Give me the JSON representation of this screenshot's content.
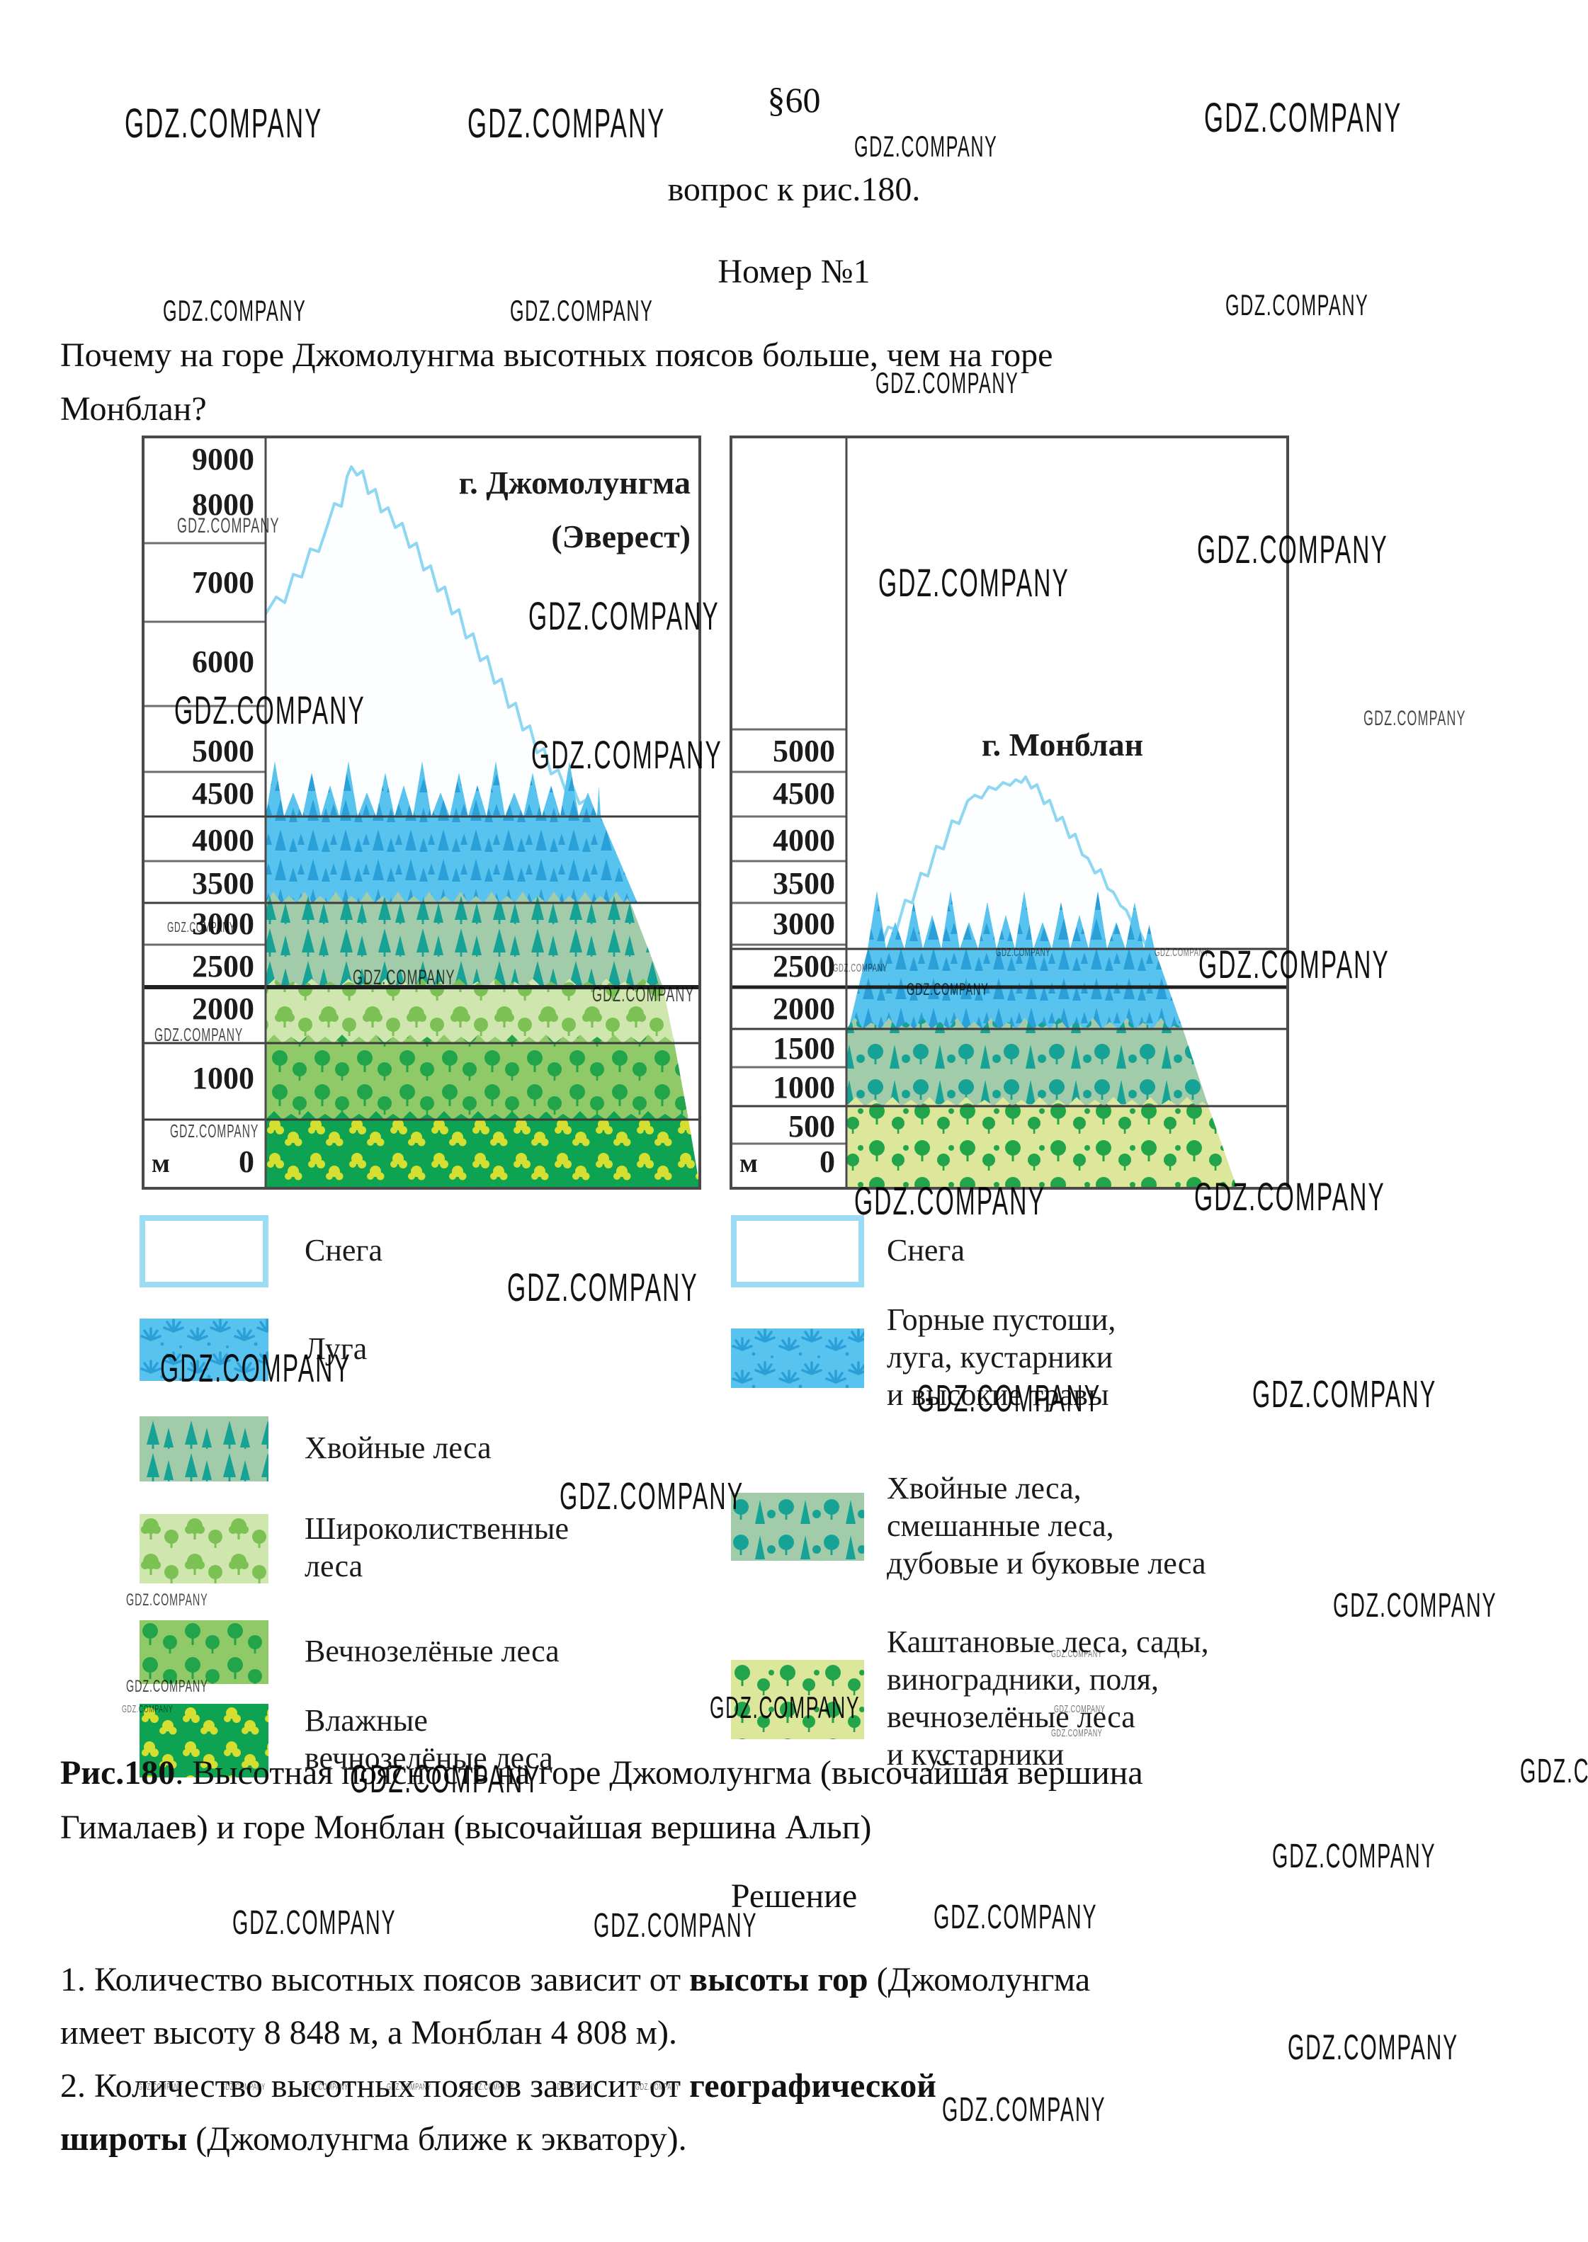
{
  "watermark": {
    "text": "GDZ.COMPANY",
    "instances": [
      [
        176,
        146,
        58
      ],
      [
        660,
        146,
        58
      ],
      [
        1700,
        138,
        58
      ],
      [
        1206,
        186,
        42
      ],
      [
        230,
        418,
        42
      ],
      [
        720,
        418,
        42
      ],
      [
        1730,
        410,
        42
      ],
      [
        1236,
        520,
        42
      ],
      [
        250,
        728,
        30
      ],
      [
        746,
        842,
        56
      ],
      [
        1240,
        795,
        56
      ],
      [
        1690,
        748,
        56
      ],
      [
        246,
        975,
        56
      ],
      [
        750,
        1038,
        56
      ],
      [
        1925,
        1000,
        30
      ],
      [
        236,
        1300,
        20
      ],
      [
        498,
        1366,
        30
      ],
      [
        836,
        1390,
        30
      ],
      [
        218,
        1448,
        26
      ],
      [
        240,
        1584,
        26
      ],
      [
        1176,
        1360,
        16
      ],
      [
        1406,
        1338,
        16
      ],
      [
        1630,
        1338,
        16
      ],
      [
        1280,
        1386,
        24
      ],
      [
        1692,
        1334,
        56
      ],
      [
        1206,
        1668,
        56
      ],
      [
        1686,
        1662,
        56
      ],
      [
        716,
        1790,
        56
      ],
      [
        226,
        1904,
        56
      ],
      [
        1294,
        1948,
        54
      ],
      [
        1768,
        1942,
        54
      ],
      [
        790,
        2086,
        54
      ],
      [
        178,
        2248,
        24
      ],
      [
        178,
        2370,
        24
      ],
      [
        1484,
        2328,
        15
      ],
      [
        1484,
        2440,
        15
      ],
      [
        1882,
        2244,
        48
      ],
      [
        494,
        2484,
        56
      ],
      [
        2146,
        2478,
        48
      ],
      [
        172,
        2406,
        15
      ],
      [
        1002,
        2390,
        44
      ],
      [
        1488,
        2406,
        15
      ],
      [
        1796,
        2598,
        48
      ],
      [
        328,
        2692,
        48
      ],
      [
        838,
        2696,
        48
      ],
      [
        1318,
        2684,
        48
      ],
      [
        1818,
        2866,
        50
      ],
      [
        1330,
        2956,
        48
      ],
      [
        195,
        2940,
        13
      ],
      [
        312,
        2940,
        13
      ],
      [
        429,
        2940,
        13
      ],
      [
        546,
        2940,
        13
      ],
      [
        663,
        2940,
        13
      ],
      [
        780,
        2940,
        13
      ],
      [
        897,
        2940,
        13
      ]
    ]
  },
  "page": {
    "section": "§60",
    "subtitle": "вопрос к рис.180.",
    "number_title": "Номер №1",
    "question_lines": [
      "Почему на горе Джомолунгма высотных поясов больше, чем на горе",
      "Монблан?"
    ],
    "caption_lines": [
      [
        {
          "t": "Рис.180",
          "b": true
        },
        {
          "t": ". Высотная поясность на горе Джомолунгма (высочайшая вершина"
        }
      ],
      [
        {
          "t": "Гималаев) и горе Монблан (высочайшая вершина Альп)"
        }
      ]
    ]
  },
  "solution": {
    "title": "Решение",
    "lines": [
      [
        {
          "t": "1. Количество высотных поясов зависит от "
        },
        {
          "t": "высоты гор",
          "b": true
        },
        {
          "t": " (Джомолунгма"
        }
      ],
      [
        {
          "t": "имеет высоту 8 848 м, а Монблан 4 808 м)."
        }
      ],
      [
        {
          "t": "2. Количество высотных поясов зависит от "
        },
        {
          "t": "географической",
          "b": true
        }
      ],
      [
        {
          "t": "широты",
          "b": true
        },
        {
          "t": " (Джомолунгма ближе к экватору)."
        }
      ]
    ]
  },
  "figure": {
    "left": {
      "title_lines": [
        "г. Джомолунгма",
        "(Эверест)"
      ],
      "unit": "м",
      "peak_height_m": 8848,
      "ticks": [
        "9000",
        "8000",
        "7000",
        "6000",
        "5000",
        "4500",
        "4000",
        "3500",
        "3000",
        "2500",
        "2000",
        "1000",
        "0"
      ],
      "zones": [
        {
          "name": "Снега",
          "type": "snow",
          "range_m": [
            4500,
            8848
          ]
        },
        {
          "name": "Луга",
          "type": "meadow",
          "range_m": [
            3500,
            4500
          ]
        },
        {
          "name": "Хвойные леса",
          "type": "conifer",
          "range_m": [
            2500,
            3500
          ]
        },
        {
          "name": "Широколиственные леса",
          "type": "broadleaf",
          "range_m": [
            2000,
            2500
          ]
        },
        {
          "name": "Вечнозелёные леса",
          "type": "evergreen",
          "range_m": [
            1000,
            2000
          ]
        },
        {
          "name": "Влажные вечнозелёные леса",
          "type": "wet",
          "range_m": [
            0,
            1000
          ]
        }
      ]
    },
    "right": {
      "title_lines": [
        "г. Монблан"
      ],
      "unit": "м",
      "peak_height_m": 4808,
      "ticks": [
        "5000",
        "4500",
        "4000",
        "3500",
        "3000",
        "2500",
        "2000",
        "1500",
        "1000",
        "500",
        "0"
      ],
      "zones": [
        {
          "name": "Снега",
          "type": "snow",
          "range_m": [
            2500,
            4808
          ]
        },
        {
          "name": "Горные пустоши, луга, кустарники и высокие травы",
          "type": "meadow",
          "range_m": [
            2000,
            2500
          ]
        },
        {
          "name": "Хвойные леса, смешанные леса, дубовые и буковые леса",
          "type": "mixedforest",
          "range_m": [
            1000,
            2000
          ]
        },
        {
          "name": "Каштановые леса, сады, виноградники, поля, вечнозелёные леса и кустарники",
          "type": "chestnut",
          "range_m": [
            0,
            1000
          ]
        }
      ]
    }
  },
  "legend_left": {
    "items": [
      {
        "swatch": "snow",
        "label_lines": [
          "Снега"
        ]
      },
      {
        "swatch": "meadow",
        "label_lines": [
          "Луга"
        ]
      },
      {
        "swatch": "conifer",
        "label_lines": [
          "Хвойные леса"
        ]
      },
      {
        "swatch": "broadleaf",
        "label_lines": [
          "Широколиственные",
          "леса"
        ]
      },
      {
        "swatch": "evergreen",
        "label_lines": [
          "Вечнозелёные леса"
        ]
      },
      {
        "swatch": "wet",
        "label_lines": [
          "Влажные",
          "вечнозелёные леса"
        ]
      }
    ]
  },
  "legend_right": {
    "items": [
      {
        "swatch": "snow",
        "label_lines": [
          "Снега"
        ]
      },
      {
        "swatch": "meadow",
        "label_lines": [
          "Горные пустоши,",
          "луга, кустарники",
          "и высокие травы"
        ]
      },
      {
        "swatch": "mixedforest",
        "label_lines": [
          "Хвойные леса,",
          "смешанные леса,",
          "дубовые и буковые леса"
        ]
      },
      {
        "swatch": "chestnut",
        "label_lines": [
          "Каштановые леса, сады,",
          "виноградники, поля,",
          "вечнозелёные леса",
          "и кустарники"
        ]
      }
    ]
  },
  "palette": {
    "text": "#1c1c1c",
    "line": "#3c3c3c",
    "line_dark": "#1f1f1f",
    "col_line": "#6e6e6e",
    "border": "#4a4a4a",
    "snow_fill": "#fdfeff",
    "snow_border": "#8ed7f2",
    "meadow_bg": "#57c3ee",
    "meadow_fg": "#2a9fd8",
    "conifer_bg": "#a2cba9",
    "conifer_fg": "#16a295",
    "broadleaf_bg": "#cfe7ae",
    "broadleaf_fg": "#7cc153",
    "evergreen_bg": "#8fc968",
    "evergreen_fg": "#21a44a",
    "wet_bg": "#0da353",
    "wet_fg": "#d5df31",
    "chestnut_bg": "#dde79c",
    "chestnut_fg": "#21a44a"
  }
}
